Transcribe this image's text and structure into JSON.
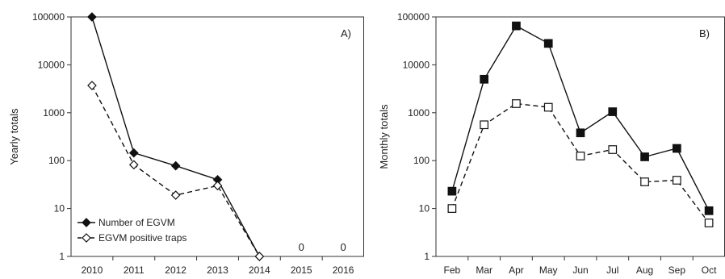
{
  "chart_data": [
    {
      "type": "line",
      "panel_label": "A)",
      "ylabel": "Yearly totals",
      "xlabel": "",
      "y_scale": "log",
      "ylim": [
        1,
        100000
      ],
      "y_ticks": [
        "1",
        "10",
        "100",
        "1000",
        "10000",
        "100000"
      ],
      "categories": [
        "2010",
        "2011",
        "2012",
        "2013",
        "2014",
        "2015",
        "2016"
      ],
      "series": [
        {
          "name": "Number of EGVM",
          "marker": "filled-diamond",
          "line": "solid",
          "values": [
            100000,
            145,
            78,
            40,
            1,
            null,
            null
          ]
        },
        {
          "name": "EGVM positive traps",
          "marker": "open-diamond",
          "line": "dashed",
          "values": [
            3700,
            82,
            19,
            30,
            1,
            null,
            null
          ]
        }
      ],
      "annotations": [
        {
          "category": "2015",
          "text": "0"
        },
        {
          "category": "2016",
          "text": "0"
        }
      ],
      "legend": "bottom-left",
      "grid": false
    },
    {
      "type": "line",
      "panel_label": "B)",
      "ylabel": "Monthly totals",
      "xlabel": "",
      "y_scale": "log",
      "ylim": [
        1,
        100000
      ],
      "y_ticks": [
        "1",
        "10",
        "100",
        "1000",
        "10000",
        "100000"
      ],
      "categories": [
        "Feb",
        "Mar",
        "Apr",
        "May",
        "Jun",
        "Jul",
        "Aug",
        "Sep",
        "Oct"
      ],
      "series": [
        {
          "marker": "filled-square",
          "line": "solid",
          "values": [
            23,
            5000,
            65000,
            28000,
            380,
            1050,
            120,
            180,
            9
          ]
        },
        {
          "marker": "open-square",
          "line": "dashed",
          "values": [
            10,
            560,
            1550,
            1300,
            125,
            170,
            36,
            39,
            5
          ]
        }
      ],
      "legend": "none",
      "grid": false
    }
  ]
}
